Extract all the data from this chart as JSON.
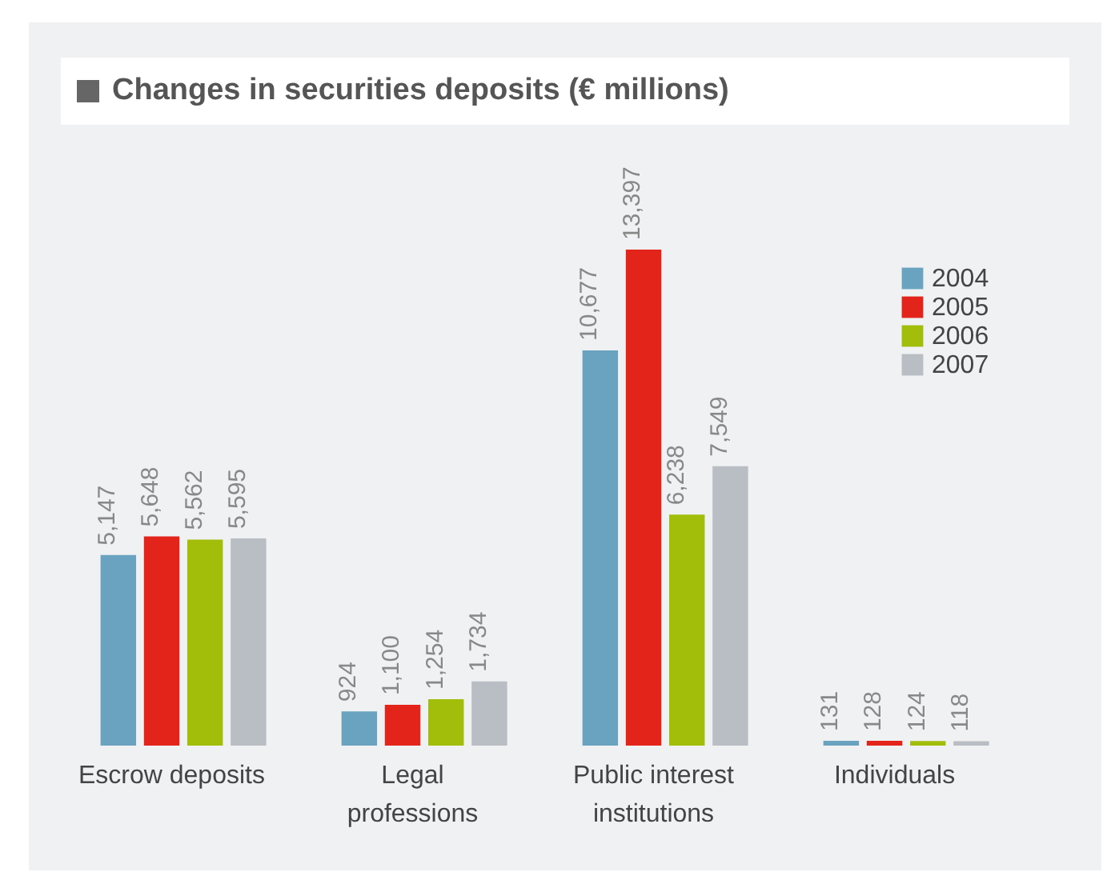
{
  "chart_data": {
    "type": "bar",
    "title": "Changes in securities deposits (€ millions)",
    "categories": [
      "Escrow deposits",
      "Legal professions",
      "Public interest institutions",
      "Individuals"
    ],
    "series": [
      {
        "name": "2004",
        "color": "#6aa3c0",
        "values": [
          5147,
          924,
          10677,
          131
        ],
        "value_labels": [
          "5,147",
          "924",
          "10,677",
          "131"
        ]
      },
      {
        "name": "2005",
        "color": "#e3241b",
        "values": [
          5648,
          1100,
          13397,
          128
        ],
        "value_labels": [
          "5,648",
          "1,100",
          "13,397",
          "128"
        ]
      },
      {
        "name": "2006",
        "color": "#a3bd0b",
        "values": [
          5562,
          1254,
          6238,
          124
        ],
        "value_labels": [
          "5,562",
          "1,254",
          "6,238",
          "124"
        ]
      },
      {
        "name": "2007",
        "color": "#b9bec4",
        "values": [
          5595,
          1734,
          7549,
          118
        ],
        "value_labels": [
          "5,595",
          "1,734",
          "7,549",
          "118"
        ]
      }
    ],
    "legend": "top right",
    "tick_labels": "x"
  }
}
